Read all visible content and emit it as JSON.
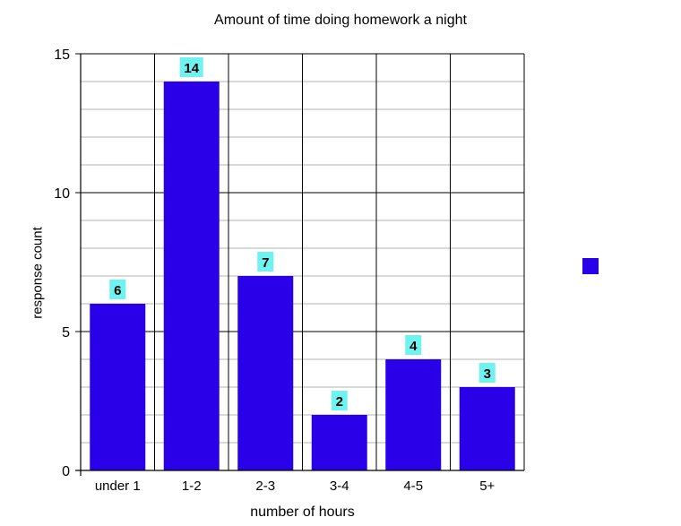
{
  "chart_data": {
    "type": "bar",
    "title": "Amount of time doing homework a night",
    "xlabel": "number of hours",
    "ylabel": "response count",
    "categories": [
      "under 1",
      "1-2",
      "2-3",
      "3-4",
      "4-5",
      "5+"
    ],
    "values": [
      6,
      14,
      7,
      2,
      4,
      3
    ],
    "ylim": [
      0,
      15
    ],
    "yticks": [
      0,
      5,
      10,
      15
    ],
    "grid": true,
    "legend": "right",
    "colors": {
      "bar": "#2a00e8",
      "data_label_bg": "#6ff3f0",
      "grid_major": "#000000",
      "grid_minor": "#b3b3b3"
    }
  }
}
